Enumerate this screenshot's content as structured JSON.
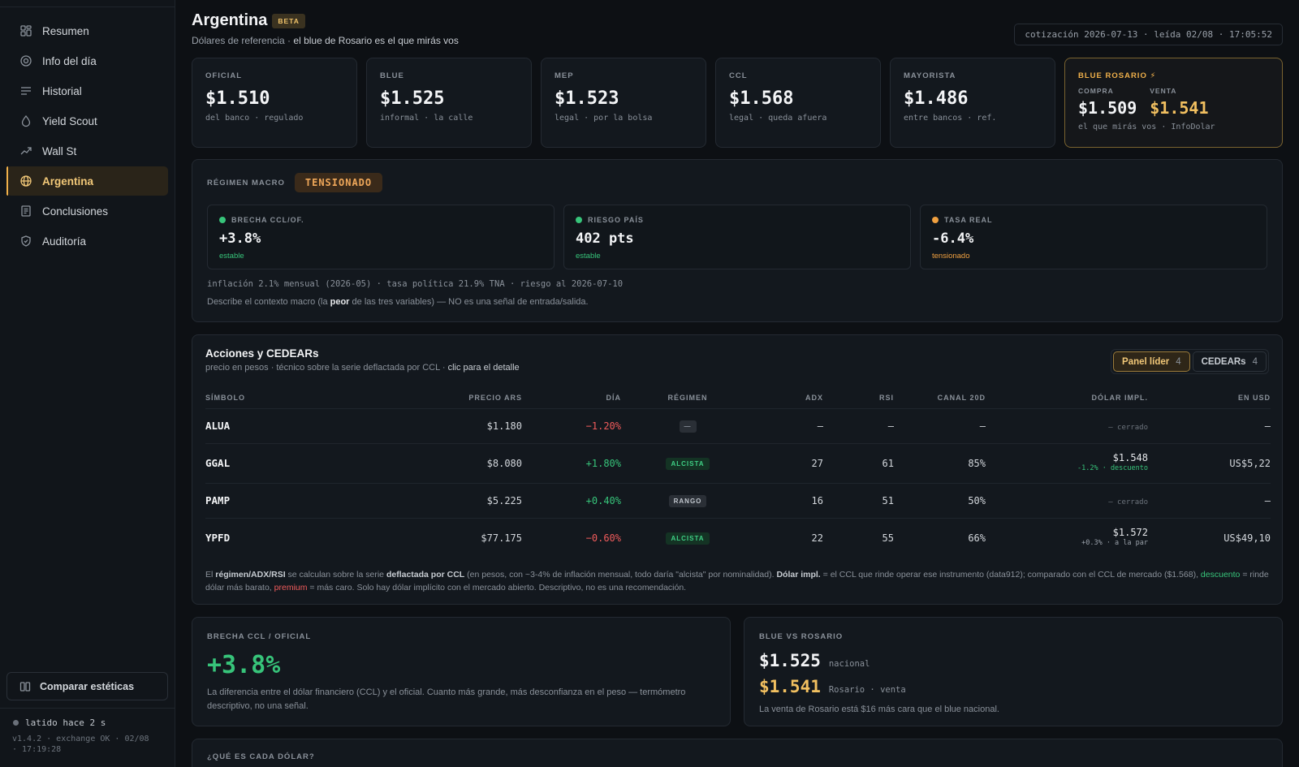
{
  "sidebar": {
    "items": [
      {
        "label": "Resumen",
        "icon": "grid-icon"
      },
      {
        "label": "Info del día",
        "icon": "target-icon"
      },
      {
        "label": "Historial",
        "icon": "lines-icon"
      },
      {
        "label": "Yield Scout",
        "icon": "drop-icon"
      },
      {
        "label": "Wall St",
        "icon": "trend-up-icon"
      },
      {
        "label": "Argentina",
        "icon": "globe-icon",
        "active": true
      },
      {
        "label": "Conclusiones",
        "icon": "document-icon"
      },
      {
        "label": "Auditoría",
        "icon": "shield-icon"
      }
    ],
    "compare_label": "Comparar estéticas",
    "heartbeat": "latido hace 2 s",
    "version": "v1.4.2 · exchange OK · 02/08 · 17:19:28"
  },
  "header": {
    "title": "Argentina",
    "badge": "BETA",
    "subtitle_prefix": "Dólares de referencia ·",
    "subtitle_emph": "el blue de Rosario es el que mirás vos",
    "stamp": "cotización 2026-07-13 · leída 02/08 · 17:05:52"
  },
  "rates": [
    {
      "label": "OFICIAL",
      "value": "$1.510",
      "sub": "del banco · regulado"
    },
    {
      "label": "BLUE",
      "value": "$1.525",
      "sub": "informal · la calle"
    },
    {
      "label": "MEP",
      "value": "$1.523",
      "sub": "legal · por la bolsa"
    },
    {
      "label": "CCL",
      "value": "$1.568",
      "sub": "legal · queda afuera"
    },
    {
      "label": "MAYORISTA",
      "value": "$1.486",
      "sub": "entre bancos · ref."
    }
  ],
  "rosario": {
    "label": "BLUE ROSARIO ⚡",
    "buy_label": "COMPRA",
    "buy_value": "$1.509",
    "sell_label": "VENTA",
    "sell_value": "$1.541",
    "sub": "el que mirás vos · InfoDolar"
  },
  "macro": {
    "label": "RÉGIMEN MACRO",
    "state": "TENSIONADO",
    "metrics": [
      {
        "label": "BRECHA CCL/OF.",
        "value": "+3.8%",
        "state": "estable",
        "dot": "#37c47a"
      },
      {
        "label": "RIESGO PAÍS",
        "value": "402 pts",
        "state": "estable",
        "dot": "#37c47a"
      },
      {
        "label": "TASA REAL",
        "value": "-6.4%",
        "state": "tensionado",
        "dot": "#f0a040"
      }
    ],
    "foot1": "inflación 2.1% mensual (2026-05) · tasa política 21.9% TNA · riesgo al 2026-07-10",
    "foot2_a": "Describe el contexto macro (la",
    "foot2_b": "peor",
    "foot2_c": "de las tres variables) — NO es una señal de entrada/salida."
  },
  "stocks": {
    "title": "Acciones y CEDEARs",
    "desc_a": "precio en pesos · técnico sobre la serie deflactada por CCL ·",
    "desc_b": "clic para el detalle",
    "tabs": [
      {
        "label": "Panel líder",
        "count": "4",
        "active": true
      },
      {
        "label": "CEDEARs",
        "count": "4",
        "active": false
      }
    ],
    "columns": [
      "SÍMBOLO",
      "PRECIO ARS",
      "DÍA",
      "RÉGIMEN",
      "ADX",
      "RSI",
      "CANAL 20D",
      "DÓLAR IMPL.",
      "EN USD"
    ],
    "rows": [
      {
        "symbol": "ALUA",
        "price": "$1.180",
        "day": "−1.20%",
        "regime": "—",
        "adx": "—",
        "rsi": "—",
        "canal": "—",
        "impl": "— cerrado",
        "impl_note": "",
        "usd": "—"
      },
      {
        "symbol": "GGAL",
        "price": "$8.080",
        "day": "+1.80%",
        "regime": "ALCISTA",
        "adx": "27",
        "rsi": "61",
        "canal": "85%",
        "impl": "$1.548",
        "impl_note": "-1.2% · descuento",
        "usd": "US$5,22"
      },
      {
        "symbol": "PAMP",
        "price": "$5.225",
        "day": "+0.40%",
        "regime": "RANGO",
        "adx": "16",
        "rsi": "51",
        "canal": "50%",
        "impl": "— cerrado",
        "impl_note": "",
        "usd": "—"
      },
      {
        "symbol": "YPFD",
        "price": "$77.175",
        "day": "−0.60%",
        "regime": "ALCISTA",
        "adx": "22",
        "rsi": "55",
        "canal": "66%",
        "impl": "$1.572",
        "impl_note": "+0.3% · a la par",
        "usd": "US$49,10"
      }
    ],
    "foot": {
      "a": "El",
      "b": "régimen/ADX/RSI",
      "c": "se calculan sobre la serie",
      "d": "deflactada por CCL",
      "e": "(en pesos, con ~3-4% de inflación mensual, todo daría \"alcista\" por nominalidad).",
      "f": "Dólar impl.",
      "g": "= el CCL que rinde operar ese instrumento (data912); comparado con el CCL de mercado ($1.568),",
      "h": "descuento",
      "i": "= rinde dólar más barato,",
      "j": "premium",
      "k": "= más caro. Solo hay dólar implícito con el mercado abierto. Descriptivo, no es una recomendación."
    }
  },
  "brecha": {
    "label": "BRECHA CCL / OFICIAL",
    "value": "+3.8%",
    "text": "La diferencia entre el dólar financiero (CCL) y el oficial. Cuanto más grande, más desconfianza en el peso — termómetro descriptivo, no una señal."
  },
  "blue_vs_rosario": {
    "label": "BLUE VS ROSARIO",
    "blue_value": "$1.525",
    "blue_tag": "nacional",
    "rosario_value": "$1.541",
    "rosario_tag": "Rosario · venta",
    "text": "La venta de Rosario está $16 más cara que el blue nacional."
  },
  "que_es": {
    "label": "¿QUÉ ES CADA DÓLAR?"
  }
}
